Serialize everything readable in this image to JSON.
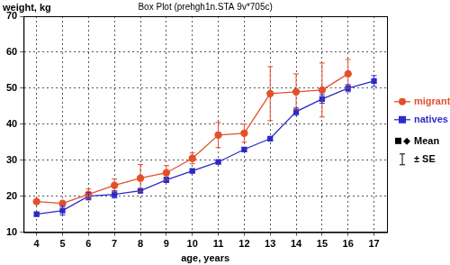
{
  "chart_data": {
    "type": "line",
    "title": "Box Plot (prehgh1n.STA 9v*705c)",
    "x_label": "age, years",
    "y_label": "weight, kg",
    "categories": [
      4,
      5,
      6,
      7,
      8,
      9,
      10,
      11,
      12,
      13,
      14,
      15,
      16,
      17
    ],
    "series": [
      {
        "name": "migrants",
        "color": "#e2502c",
        "marker": "circle",
        "values": [
          18.5,
          18,
          20.5,
          23,
          25,
          26.5,
          30.5,
          37,
          37.5,
          48.5,
          49,
          49.5,
          54,
          null
        ],
        "errors": [
          0.3,
          0.5,
          1.5,
          1.8,
          3.8,
          2,
          1.5,
          3.5,
          2.5,
          7.5,
          5,
          7.5,
          4,
          null
        ]
      },
      {
        "name": "natives",
        "color": "#2b2bc8",
        "marker": "square",
        "values": [
          15,
          16,
          20,
          20.5,
          21.5,
          24.5,
          27,
          29.5,
          33,
          36,
          43.5,
          47,
          50,
          52
        ],
        "errors": [
          0.5,
          1.2,
          1,
          1,
          0.5,
          0.7,
          0.5,
          0.3,
          0.5,
          0.5,
          1,
          1.2,
          1,
          1.5
        ]
      }
    ],
    "ylim": [
      10,
      70
    ],
    "yticks": [
      10,
      20,
      30,
      40,
      50,
      60,
      70
    ],
    "grid": true,
    "legend": "right",
    "annotations": [
      "Mean",
      "± SE"
    ]
  }
}
